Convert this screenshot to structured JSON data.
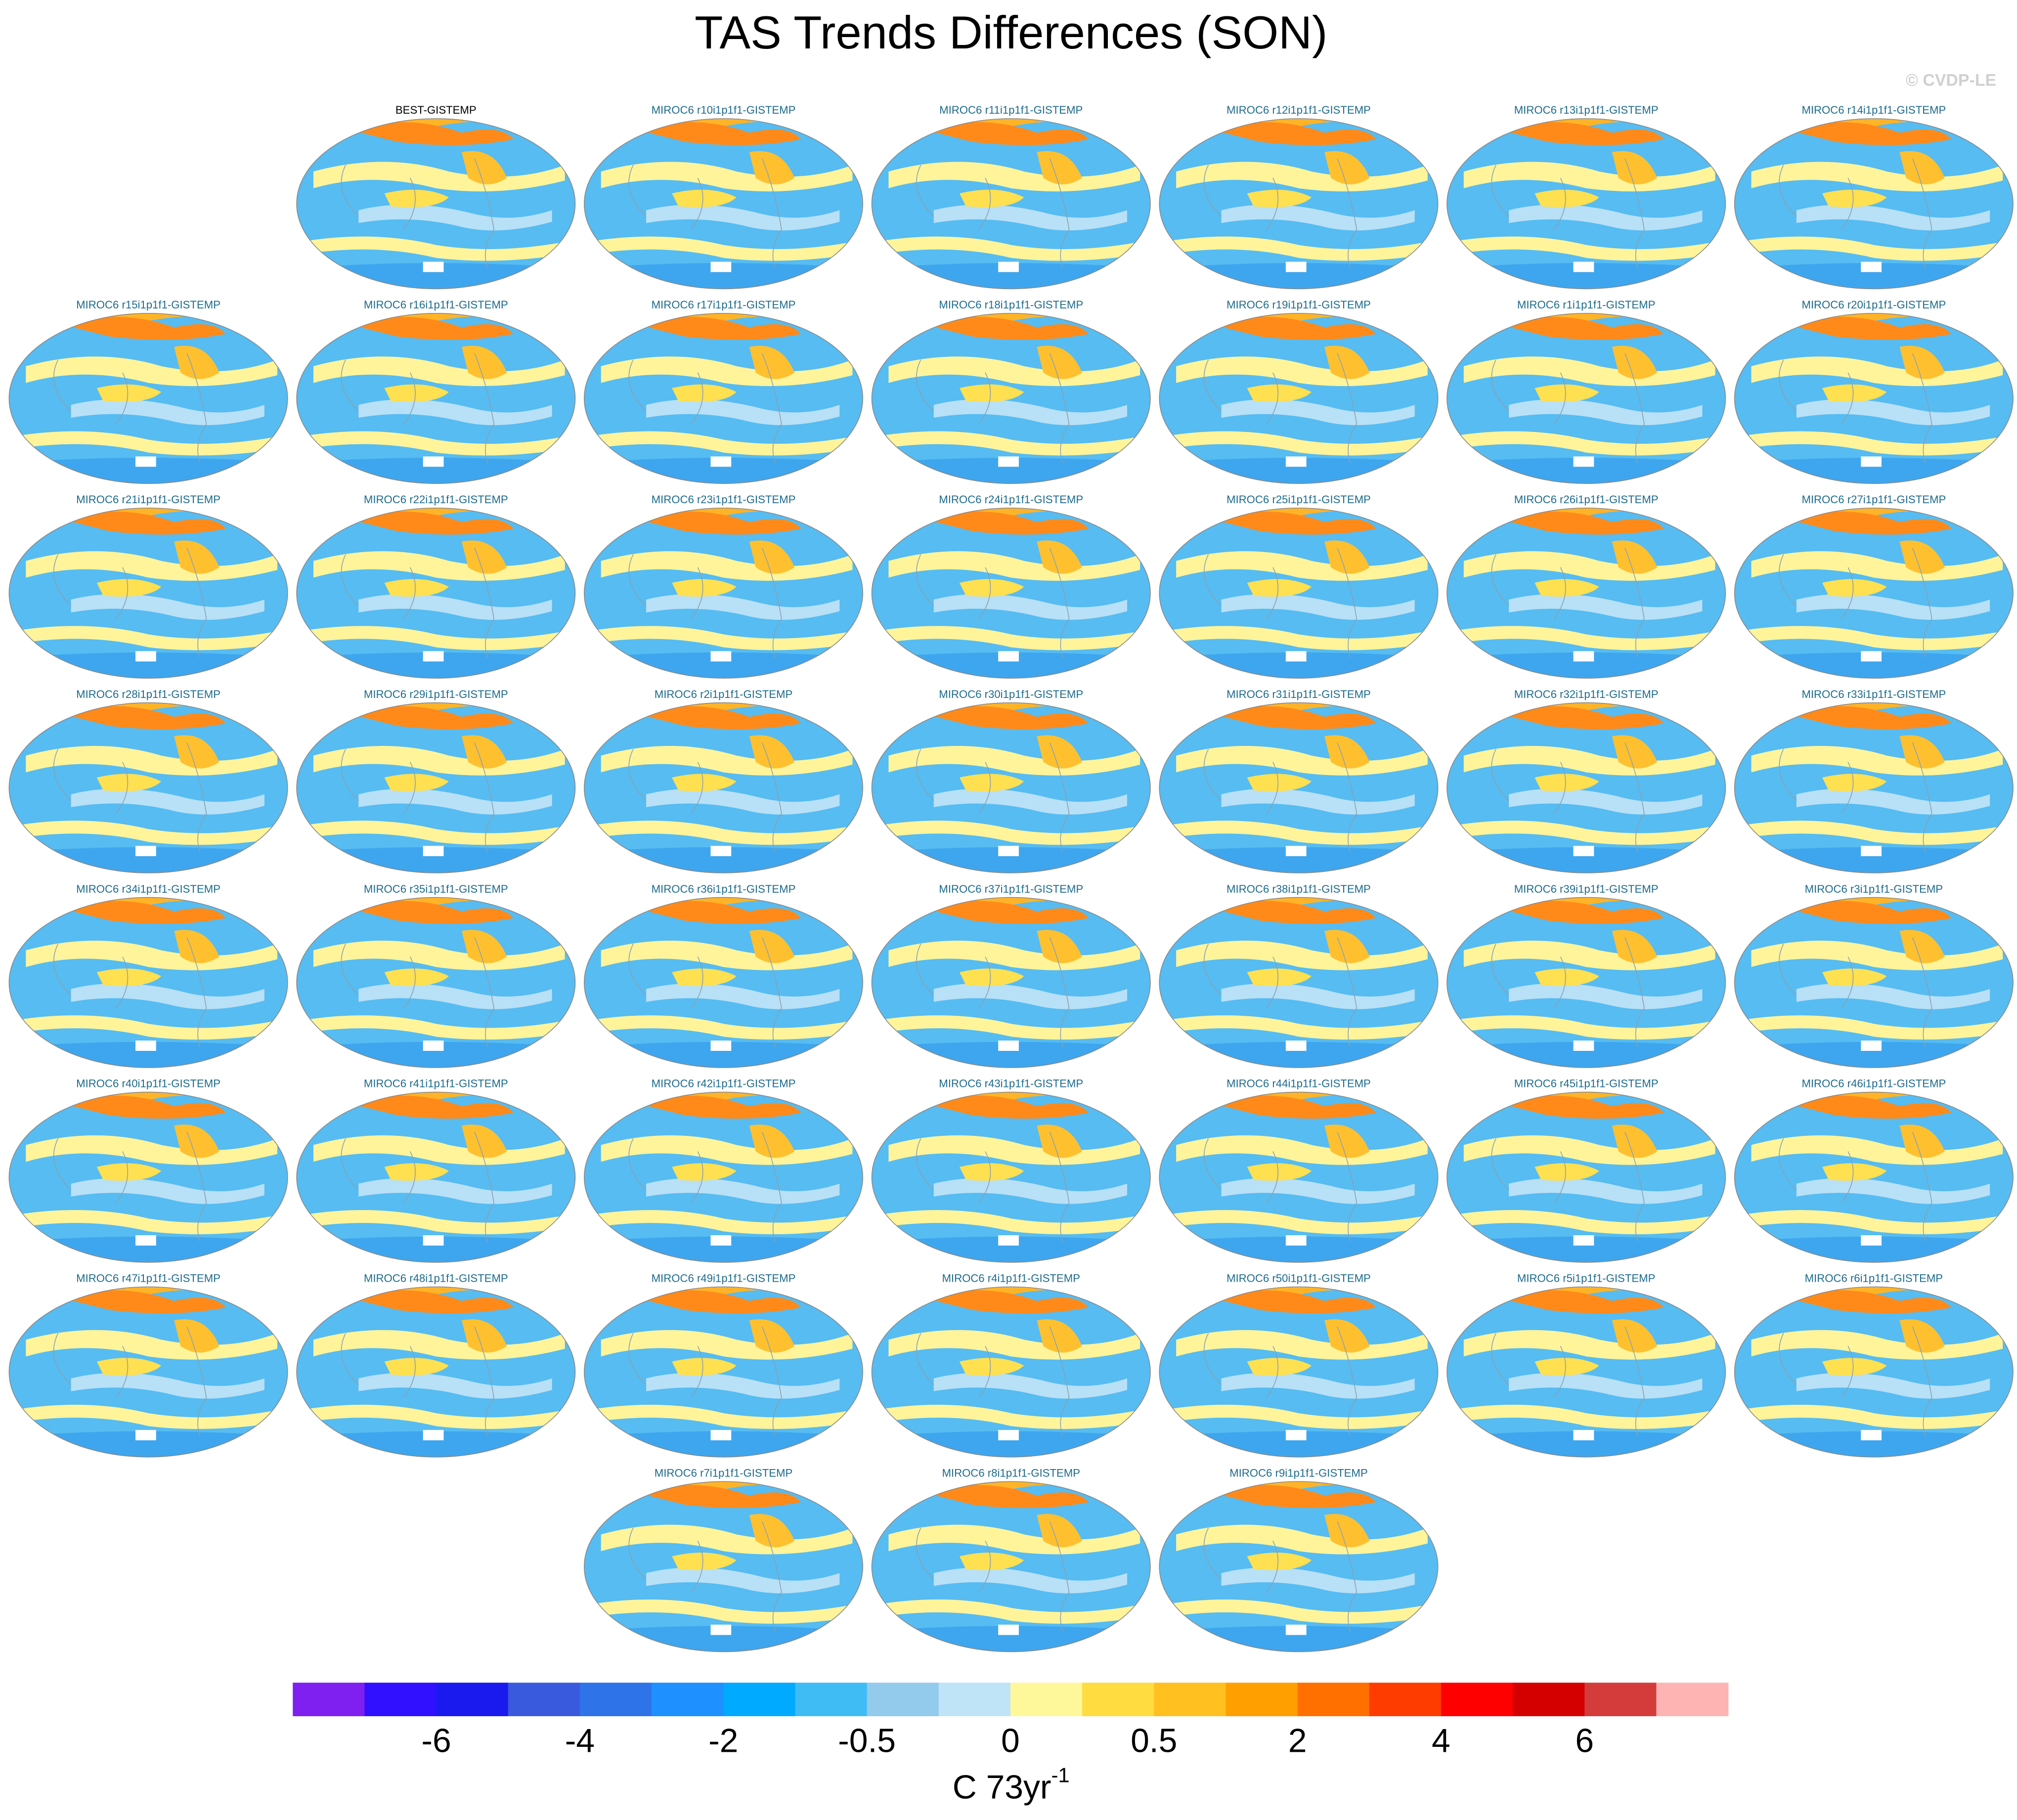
{
  "title": "TAS Trends Differences (SON)",
  "watermark": "© CVDP-LE",
  "panels": [
    [
      "BEST-GISTEMP",
      "MIROC6 r10i1p1f1-GISTEMP",
      "MIROC6 r11i1p1f1-GISTEMP",
      "MIROC6 r12i1p1f1-GISTEMP",
      "MIROC6 r13i1p1f1-GISTEMP",
      "MIROC6 r14i1p1f1-GISTEMP"
    ],
    [
      "MIROC6 r15i1p1f1-GISTEMP",
      "MIROC6 r16i1p1f1-GISTEMP",
      "MIROC6 r17i1p1f1-GISTEMP",
      "MIROC6 r18i1p1f1-GISTEMP",
      "MIROC6 r19i1p1f1-GISTEMP",
      "MIROC6 r1i1p1f1-GISTEMP",
      "MIROC6 r20i1p1f1-GISTEMP"
    ],
    [
      "MIROC6 r21i1p1f1-GISTEMP",
      "MIROC6 r22i1p1f1-GISTEMP",
      "MIROC6 r23i1p1f1-GISTEMP",
      "MIROC6 r24i1p1f1-GISTEMP",
      "MIROC6 r25i1p1f1-GISTEMP",
      "MIROC6 r26i1p1f1-GISTEMP",
      "MIROC6 r27i1p1f1-GISTEMP"
    ],
    [
      "MIROC6 r28i1p1f1-GISTEMP",
      "MIROC6 r29i1p1f1-GISTEMP",
      "MIROC6 r2i1p1f1-GISTEMP",
      "MIROC6 r30i1p1f1-GISTEMP",
      "MIROC6 r31i1p1f1-GISTEMP",
      "MIROC6 r32i1p1f1-GISTEMP",
      "MIROC6 r33i1p1f1-GISTEMP"
    ],
    [
      "MIROC6 r34i1p1f1-GISTEMP",
      "MIROC6 r35i1p1f1-GISTEMP",
      "MIROC6 r36i1p1f1-GISTEMP",
      "MIROC6 r37i1p1f1-GISTEMP",
      "MIROC6 r38i1p1f1-GISTEMP",
      "MIROC6 r39i1p1f1-GISTEMP",
      "MIROC6 r3i1p1f1-GISTEMP"
    ],
    [
      "MIROC6 r40i1p1f1-GISTEMP",
      "MIROC6 r41i1p1f1-GISTEMP",
      "MIROC6 r42i1p1f1-GISTEMP",
      "MIROC6 r43i1p1f1-GISTEMP",
      "MIROC6 r44i1p1f1-GISTEMP",
      "MIROC6 r45i1p1f1-GISTEMP",
      "MIROC6 r46i1p1f1-GISTEMP"
    ],
    [
      "MIROC6 r47i1p1f1-GISTEMP",
      "MIROC6 r48i1p1f1-GISTEMP",
      "MIROC6 r49i1p1f1-GISTEMP",
      "MIROC6 r4i1p1f1-GISTEMP",
      "MIROC6 r50i1p1f1-GISTEMP",
      "MIROC6 r5i1p1f1-GISTEMP",
      "MIROC6 r6i1p1f1-GISTEMP"
    ],
    [
      "MIROC6 r7i1p1f1-GISTEMP",
      "MIROC6 r8i1p1f1-GISTEMP",
      "MIROC6 r9i1p1f1-GISTEMP"
    ]
  ],
  "colorbar": {
    "colors": [
      "#7f1ff0",
      "#3010ff",
      "#1a1aee",
      "#3a5ade",
      "#2e74e8",
      "#1e90ff",
      "#00aaff",
      "#40bcf5",
      "#92cbec",
      "#bfe3f7",
      "#fff89a",
      "#ffdc40",
      "#ffc020",
      "#ffa000",
      "#ff7000",
      "#ff3c00",
      "#ff0000",
      "#d40000",
      "#d43c3c",
      "#ffb4b4"
    ],
    "labels": [
      -6,
      -4,
      -2,
      -0.5,
      0,
      0.5,
      2,
      4,
      6
    ],
    "unit": "C 73yr",
    "unit_exponent": "-1"
  }
}
